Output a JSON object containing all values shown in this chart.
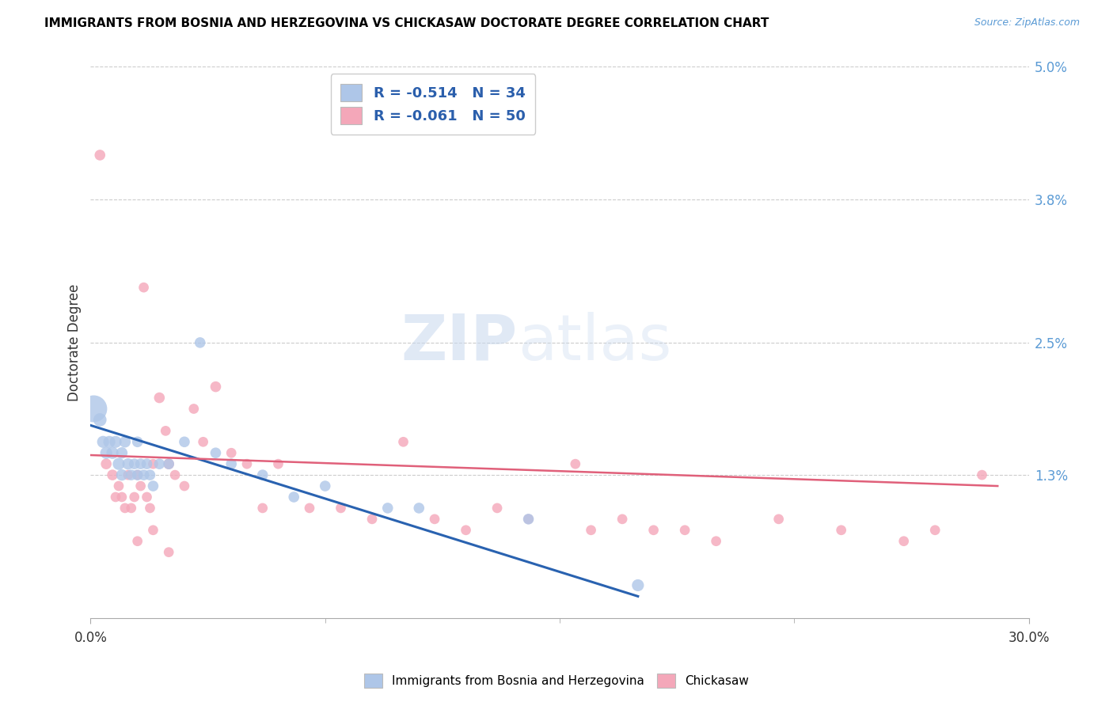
{
  "title": "IMMIGRANTS FROM BOSNIA AND HERZEGOVINA VS CHICKASAW DOCTORATE DEGREE CORRELATION CHART",
  "source": "Source: ZipAtlas.com",
  "ylabel": "Doctorate Degree",
  "xlim": [
    0.0,
    0.3
  ],
  "ylim": [
    0.0,
    0.05
  ],
  "xtick_labels": [
    "0.0%",
    "30.0%"
  ],
  "xtick_minor": [
    0.075,
    0.15,
    0.225
  ],
  "ytick_labels": [
    "1.3%",
    "2.5%",
    "3.8%",
    "5.0%"
  ],
  "ytick_values": [
    0.013,
    0.025,
    0.038,
    0.05
  ],
  "legend1_r": "-0.514",
  "legend1_n": "34",
  "legend2_r": "-0.061",
  "legend2_n": "50",
  "blue_color": "#aec6e8",
  "pink_color": "#f4a7b9",
  "blue_line_color": "#2962b0",
  "pink_line_color": "#e0607a",
  "watermark_zip": "ZIP",
  "watermark_atlas": "atlas",
  "blue_scatter_x": [
    0.001,
    0.003,
    0.004,
    0.005,
    0.006,
    0.007,
    0.008,
    0.009,
    0.01,
    0.01,
    0.011,
    0.012,
    0.013,
    0.014,
    0.015,
    0.015,
    0.016,
    0.017,
    0.018,
    0.019,
    0.02,
    0.022,
    0.025,
    0.03,
    0.035,
    0.04,
    0.045,
    0.055,
    0.065,
    0.075,
    0.095,
    0.105,
    0.14,
    0.175
  ],
  "blue_scatter_y": [
    0.019,
    0.018,
    0.016,
    0.015,
    0.016,
    0.015,
    0.016,
    0.014,
    0.015,
    0.013,
    0.016,
    0.014,
    0.013,
    0.014,
    0.013,
    0.016,
    0.014,
    0.013,
    0.014,
    0.013,
    0.012,
    0.014,
    0.014,
    0.016,
    0.025,
    0.015,
    0.014,
    0.013,
    0.011,
    0.012,
    0.01,
    0.01,
    0.009,
    0.003
  ],
  "blue_scatter_size": [
    500,
    120,
    100,
    100,
    100,
    100,
    100,
    100,
    90,
    90,
    90,
    90,
    80,
    80,
    80,
    80,
    80,
    80,
    80,
    80,
    80,
    80,
    80,
    80,
    80,
    80,
    80,
    80,
    80,
    80,
    80,
    80,
    80,
    100
  ],
  "pink_scatter_x": [
    0.003,
    0.005,
    0.007,
    0.008,
    0.009,
    0.01,
    0.011,
    0.012,
    0.013,
    0.014,
    0.015,
    0.016,
    0.017,
    0.018,
    0.019,
    0.02,
    0.022,
    0.024,
    0.025,
    0.027,
    0.03,
    0.033,
    0.036,
    0.04,
    0.045,
    0.05,
    0.055,
    0.06,
    0.07,
    0.08,
    0.09,
    0.1,
    0.11,
    0.12,
    0.13,
    0.14,
    0.155,
    0.16,
    0.17,
    0.18,
    0.19,
    0.2,
    0.22,
    0.24,
    0.26,
    0.27,
    0.285,
    0.015,
    0.02,
    0.025
  ],
  "pink_scatter_y": [
    0.042,
    0.014,
    0.013,
    0.011,
    0.012,
    0.011,
    0.01,
    0.013,
    0.01,
    0.011,
    0.013,
    0.012,
    0.03,
    0.011,
    0.01,
    0.014,
    0.02,
    0.017,
    0.014,
    0.013,
    0.012,
    0.019,
    0.016,
    0.021,
    0.015,
    0.014,
    0.01,
    0.014,
    0.01,
    0.01,
    0.009,
    0.016,
    0.009,
    0.008,
    0.01,
    0.009,
    0.014,
    0.008,
    0.009,
    0.008,
    0.008,
    0.007,
    0.009,
    0.008,
    0.007,
    0.008,
    0.013,
    0.007,
    0.008,
    0.006
  ],
  "pink_scatter_size": [
    80,
    80,
    80,
    70,
    70,
    70,
    70,
    70,
    70,
    70,
    70,
    70,
    70,
    70,
    70,
    70,
    80,
    70,
    80,
    70,
    70,
    70,
    70,
    80,
    70,
    70,
    70,
    70,
    70,
    70,
    70,
    70,
    70,
    70,
    70,
    70,
    70,
    70,
    70,
    70,
    70,
    70,
    70,
    70,
    70,
    70,
    70,
    70,
    70,
    70
  ],
  "blue_line_x0": 0.0,
  "blue_line_x1": 0.175,
  "blue_line_y0": 0.0175,
  "blue_line_y1": 0.002,
  "pink_line_x0": 0.0,
  "pink_line_x1": 0.29,
  "pink_line_y0": 0.0148,
  "pink_line_y1": 0.012
}
